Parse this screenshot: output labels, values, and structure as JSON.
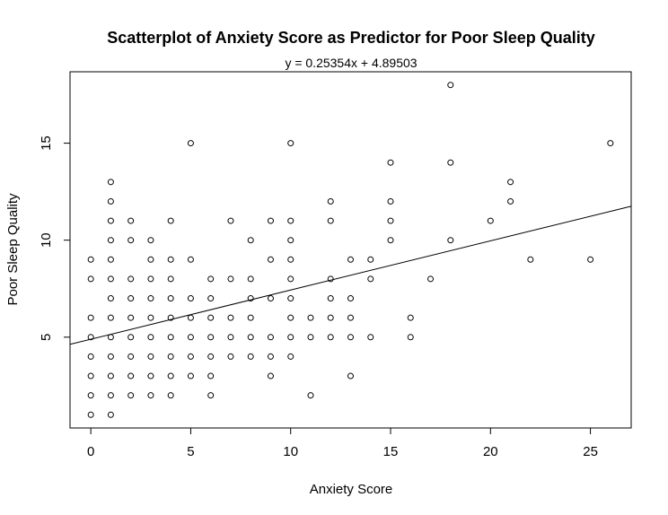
{
  "chart_data": {
    "type": "scatter",
    "title": "Scatterplot of Anxiety Score as Predictor for Poor Sleep Quality",
    "subtitle": "y = 0.25354x + 4.89503",
    "xlabel": "Anxiety Score",
    "ylabel": "Poor Sleep Quality",
    "xlim": [
      -1.04,
      27.04
    ],
    "ylim": [
      0.32,
      18.68
    ],
    "xticks": [
      0,
      5,
      10,
      15,
      20,
      25
    ],
    "yticks": [
      5,
      10,
      15
    ],
    "grid": false,
    "regression": {
      "slope": 0.25354,
      "intercept": 4.89503
    },
    "points": [
      [
        0,
        1
      ],
      [
        0,
        2
      ],
      [
        0,
        3
      ],
      [
        0,
        4
      ],
      [
        0,
        5
      ],
      [
        0,
        6
      ],
      [
        0,
        8
      ],
      [
        0,
        9
      ],
      [
        1,
        1
      ],
      [
        1,
        2
      ],
      [
        1,
        3
      ],
      [
        1,
        4
      ],
      [
        1,
        5
      ],
      [
        1,
        6
      ],
      [
        1,
        7
      ],
      [
        1,
        8
      ],
      [
        1,
        9
      ],
      [
        1,
        10
      ],
      [
        1,
        11
      ],
      [
        1,
        12
      ],
      [
        1,
        13
      ],
      [
        2,
        2
      ],
      [
        2,
        3
      ],
      [
        2,
        4
      ],
      [
        2,
        5
      ],
      [
        2,
        6
      ],
      [
        2,
        7
      ],
      [
        2,
        8
      ],
      [
        2,
        10
      ],
      [
        2,
        11
      ],
      [
        3,
        2
      ],
      [
        3,
        3
      ],
      [
        3,
        4
      ],
      [
        3,
        5
      ],
      [
        3,
        6
      ],
      [
        3,
        7
      ],
      [
        3,
        8
      ],
      [
        3,
        9
      ],
      [
        3,
        10
      ],
      [
        4,
        2
      ],
      [
        4,
        3
      ],
      [
        4,
        4
      ],
      [
        4,
        5
      ],
      [
        4,
        6
      ],
      [
        4,
        7
      ],
      [
        4,
        8
      ],
      [
        4,
        9
      ],
      [
        4,
        11
      ],
      [
        5,
        3
      ],
      [
        5,
        4
      ],
      [
        5,
        5
      ],
      [
        5,
        6
      ],
      [
        5,
        7
      ],
      [
        5,
        9
      ],
      [
        5,
        15
      ],
      [
        6,
        2
      ],
      [
        6,
        3
      ],
      [
        6,
        4
      ],
      [
        6,
        5
      ],
      [
        6,
        6
      ],
      [
        6,
        7
      ],
      [
        6,
        8
      ],
      [
        7,
        4
      ],
      [
        7,
        5
      ],
      [
        7,
        6
      ],
      [
        7,
        8
      ],
      [
        7,
        11
      ],
      [
        8,
        4
      ],
      [
        8,
        5
      ],
      [
        8,
        6
      ],
      [
        8,
        7
      ],
      [
        8,
        8
      ],
      [
        8,
        10
      ],
      [
        9,
        3
      ],
      [
        9,
        4
      ],
      [
        9,
        5
      ],
      [
        9,
        7
      ],
      [
        9,
        9
      ],
      [
        9,
        11
      ],
      [
        10,
        4
      ],
      [
        10,
        5
      ],
      [
        10,
        6
      ],
      [
        10,
        7
      ],
      [
        10,
        8
      ],
      [
        10,
        9
      ],
      [
        10,
        10
      ],
      [
        10,
        11
      ],
      [
        10,
        15
      ],
      [
        11,
        2
      ],
      [
        11,
        5
      ],
      [
        11,
        6
      ],
      [
        12,
        5
      ],
      [
        12,
        6
      ],
      [
        12,
        7
      ],
      [
        12,
        8
      ],
      [
        12,
        11
      ],
      [
        12,
        12
      ],
      [
        13,
        3
      ],
      [
        13,
        5
      ],
      [
        13,
        6
      ],
      [
        13,
        7
      ],
      [
        13,
        9
      ],
      [
        14,
        5
      ],
      [
        14,
        8
      ],
      [
        14,
        9
      ],
      [
        15,
        10
      ],
      [
        15,
        11
      ],
      [
        15,
        12
      ],
      [
        15,
        14
      ],
      [
        16,
        5
      ],
      [
        16,
        6
      ],
      [
        17,
        8
      ],
      [
        18,
        10
      ],
      [
        18,
        14
      ],
      [
        18,
        18
      ],
      [
        20,
        11
      ],
      [
        21,
        12
      ],
      [
        21,
        13
      ],
      [
        22,
        9
      ],
      [
        25,
        9
      ],
      [
        26,
        15
      ]
    ]
  }
}
